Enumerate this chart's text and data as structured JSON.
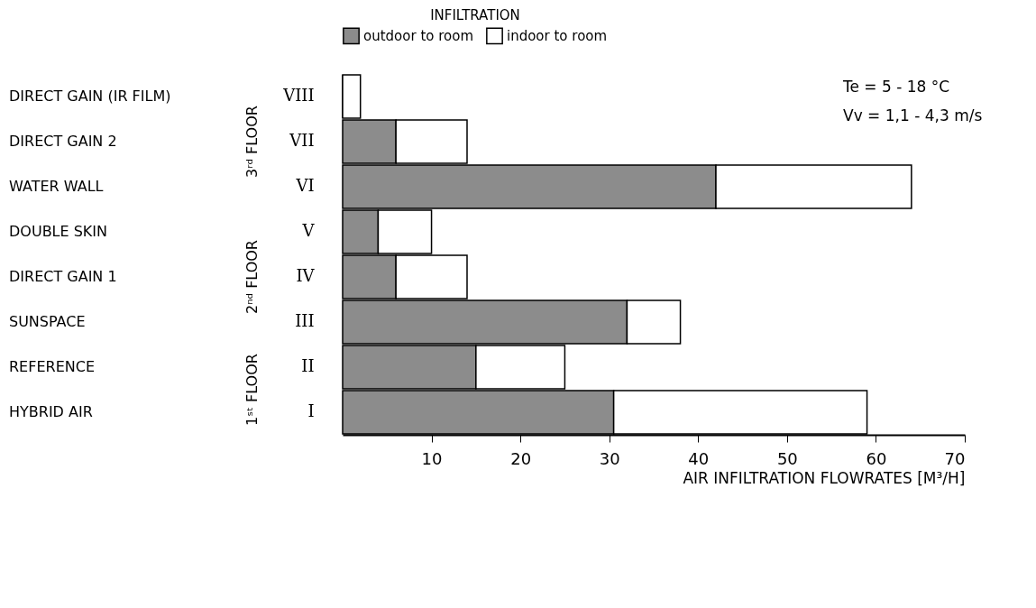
{
  "chart_data": {
    "type": "bar",
    "orientation": "horizontal",
    "stacked": true,
    "categories": [
      "VIII",
      "VII",
      "VI",
      "V",
      "IV",
      "III",
      "II",
      "I"
    ],
    "series": [
      {
        "name": "outdoor to room",
        "color": "#8c8c8c",
        "values": [
          0,
          6,
          42,
          4,
          6,
          32,
          15,
          30.5
        ]
      },
      {
        "name": "indoor to room",
        "color": "#ffffff",
        "values": [
          2,
          8,
          22,
          6,
          8,
          6,
          10,
          28.5
        ]
      }
    ],
    "legend_title": "INFILTRATION",
    "legend": "top",
    "xlabel": "AIR INFILTRATION FLOWRATES [M³/H]",
    "xlim": [
      0,
      70
    ],
    "xticks": [
      10,
      20,
      30,
      40,
      50,
      60,
      70
    ],
    "grid": false,
    "annotations": [
      "DIRECT GAIN (IR FILM)",
      "DIRECT GAIN 2",
      "WATER WALL",
      "DOUBLE SKIN",
      "DIRECT GAIN 1",
      "SUNSPACE",
      "REFERENCE",
      "HYBRID AIR",
      "3ʳᵈ FLOOR",
      "2ⁿᵈ FLOOR",
      "1ˢᵗ FLOOR",
      "Te = 5 - 18 °C",
      "Vv = 1,1 - 4,3 m/s"
    ]
  }
}
